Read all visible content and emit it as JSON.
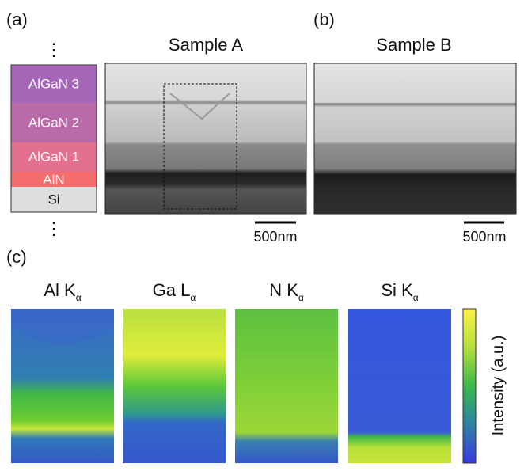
{
  "panel_a": {
    "label": "(a)",
    "title": "Sample A",
    "scale_bar": "500nm",
    "ellipsis": "⋮",
    "layers": [
      "AlGaN 3",
      "AlGaN 2",
      "AlGaN 1",
      "AlN",
      "Si"
    ]
  },
  "panel_b": {
    "label": "(b)",
    "title": "Sample B",
    "scale_bar": "500nm"
  },
  "panel_c": {
    "label": "(c)",
    "maps": [
      {
        "element": "Al K",
        "subscript": "α"
      },
      {
        "element": "Ga L",
        "subscript": "α"
      },
      {
        "element": "N K",
        "subscript": "α"
      },
      {
        "element": "Si K",
        "subscript": "α"
      }
    ],
    "colorbar_label": "Intensity (a.u.)"
  }
}
